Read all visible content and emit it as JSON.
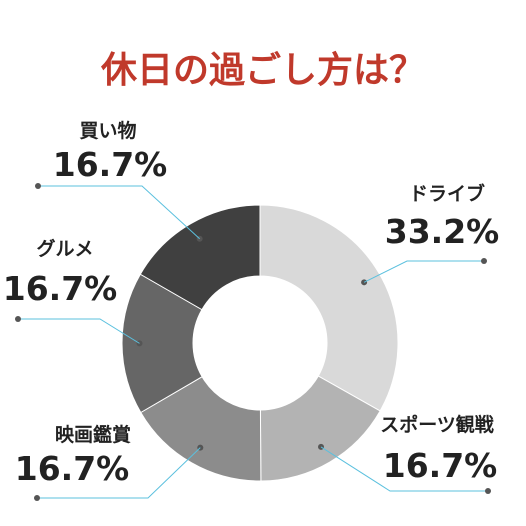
{
  "chart_data": {
    "type": "pie",
    "donut": true,
    "title": "休日の過ごし方は？",
    "categories": [
      "ドライブ",
      "スポーツ観戦",
      "映画鑑賞",
      "グルメ",
      "買い物"
    ],
    "values": [
      33.2,
      16.7,
      16.7,
      16.7,
      16.7
    ],
    "value_labels": [
      "33.2%",
      "16.7%",
      "16.7%",
      "16.7%",
      "16.7%"
    ],
    "colors": [
      "#d9d9d9",
      "#b3b3b3",
      "#8c8c8c",
      "#666666",
      "#404040"
    ],
    "title_color": "#c0392b",
    "leader_color": "#5bc0de",
    "legend": "none"
  }
}
